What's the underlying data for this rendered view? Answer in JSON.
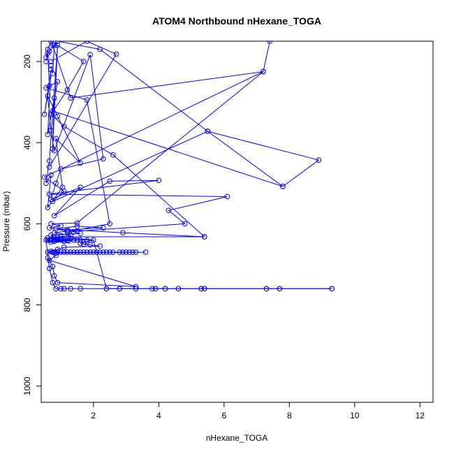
{
  "chart_data": {
    "type": "scatter",
    "title": "ATOM4 Northbound nHexane_TOGA",
    "xlabel": "nHexane_TOGA",
    "ylabel": "Pressure (mbar)",
    "xlim": [
      0.4,
      12.4
    ],
    "ylim": [
      1040,
      150
    ],
    "y_reversed": true,
    "xticks": [
      2,
      4,
      6,
      8,
      10,
      12
    ],
    "yticks": [
      200,
      400,
      600,
      800,
      1000
    ],
    "grid": false,
    "legend": "none",
    "color": "#0000ff",
    "series": [
      {
        "style": "line+points",
        "x": [
          0.55,
          0.6,
          0.65,
          0.5,
          0.7,
          0.6,
          0.8,
          0.75,
          0.9,
          0.65,
          0.55,
          0.7,
          0.6,
          1.05,
          0.85,
          1.6,
          0.9,
          0.6,
          0.7,
          0.8,
          1.9,
          2.3,
          1.0,
          0.85,
          0.7,
          1.6,
          0.8,
          2.5,
          4.0,
          0.65,
          6.1,
          4.3,
          4.8,
          1.2,
          2.5,
          1.8,
          0.55,
          0.9,
          0.75,
          7.8,
          8.9,
          5.5,
          0.75,
          1.1,
          0.5,
          7.2,
          1.5,
          0.7,
          1.0,
          0.65,
          1.2,
          0.8,
          1.3,
          0.9,
          0.6,
          1.0,
          0.7,
          1.5,
          1.2,
          0.8,
          1.4,
          0.7,
          1.1,
          0.65,
          1.25,
          0.6,
          1.0,
          5.4,
          2.9,
          0.85,
          1.5,
          2.3,
          1.2,
          1.4,
          1.6,
          0.7,
          0.8,
          1.3,
          2.0,
          1.8,
          1.6,
          1.7,
          1.9,
          2.2,
          1.1,
          0.9,
          0.6,
          0.85,
          0.65,
          3.3,
          0.9,
          0.8,
          0.75,
          0.6
        ],
        "y": [
          200,
          180,
          260,
          330,
          220,
          380,
          290,
          415,
          160,
          445,
          500,
          480,
          560,
          510,
          390,
          450,
          335,
          285,
          370,
          420,
          183,
          440,
          465,
          500,
          540,
          510,
          580,
          495,
          493,
          527,
          533,
          567,
          600,
          620,
          600,
          295,
          265,
          250,
          322,
          508,
          443,
          372,
          545,
          520,
          485,
          225,
          598,
          600,
          605,
          610,
          618,
          622,
          628,
          633,
          635,
          637,
          638,
          640,
          641,
          643,
          640,
          645,
          643,
          640,
          642,
          635,
          632,
          632,
          622,
          613,
          606,
          610,
          615,
          620,
          624,
          628,
          632,
          636,
          640,
          644,
          648,
          650,
          652,
          655,
          658,
          663,
          670,
          678,
          690,
          755,
          745,
          728,
          705,
          684
        ]
      },
      {
        "style": "line+points",
        "x": [
          0.6,
          0.75,
          0.8,
          0.9,
          1.0,
          1.1,
          1.2,
          1.3,
          1.4,
          1.5,
          1.6,
          1.7,
          1.8,
          1.9,
          2.0,
          2.1,
          2.2,
          2.3,
          2.4,
          2.5,
          2.6,
          2.8,
          2.9,
          3.0,
          3.1,
          3.2,
          3.3,
          3.6,
          0.85,
          0.7
        ],
        "y": [
          670,
          670,
          670,
          670,
          670,
          670,
          670,
          670,
          670,
          670,
          670,
          670,
          670,
          670,
          670,
          670,
          670,
          670,
          670,
          670,
          670,
          670,
          670,
          670,
          670,
          670,
          670,
          670,
          672,
          668
        ]
      },
      {
        "style": "line+points",
        "x": [
          0.6,
          0.7,
          0.8,
          0.9,
          1.0,
          1.1,
          1.2,
          1.4,
          1.6,
          1.8,
          2.0,
          2.4,
          2.8,
          3.3,
          3.8,
          3.9,
          4.2,
          4.6,
          5.3,
          5.4,
          7.3,
          7.7,
          9.3
        ],
        "y": [
          640,
          640,
          640,
          640,
          640,
          640,
          640,
          640,
          640,
          640,
          640,
          760,
          760,
          760,
          760,
          760,
          760,
          760,
          760,
          760,
          760,
          760,
          760
        ]
      },
      {
        "style": "line+points",
        "x": [
          0.55,
          0.65,
          0.75,
          0.85,
          1.0,
          1.1,
          1.3,
          1.6,
          2.4,
          2.8,
          3.3,
          3.9,
          4.2,
          4.6,
          5.3,
          5.4,
          7.3,
          7.7,
          9.3
        ],
        "y": [
          640,
          710,
          745,
          760,
          760,
          760,
          760,
          760,
          760,
          760,
          760,
          760,
          760,
          760,
          760,
          760,
          760,
          760,
          760
        ]
      },
      {
        "style": "line+points",
        "x": [
          0.7,
          0.6,
          0.55,
          0.65,
          0.8,
          0.75,
          0.7
        ],
        "y": [
          150,
          170,
          190,
          175,
          160,
          230,
          210
        ]
      },
      {
        "style": "line+points",
        "x": [
          0.7,
          1.8,
          2.7,
          0.65
        ],
        "y": [
          200,
          150,
          182,
          460
        ]
      },
      {
        "style": "line+points",
        "x": [
          0.75,
          1.3,
          7.2,
          7.4
        ],
        "y": [
          160,
          290,
          225,
          150
        ]
      },
      {
        "style": "line+points",
        "x": [
          0.8,
          1.7,
          1.2,
          0.7,
          1.1,
          2.6,
          5.4
        ],
        "y": [
          155,
          200,
          270,
          330,
          360,
          430,
          632
        ]
      },
      {
        "style": "line+points",
        "x": [
          0.9,
          2.2,
          5.5,
          7.8
        ],
        "y": [
          150,
          170,
          372,
          508
        ]
      }
    ]
  }
}
